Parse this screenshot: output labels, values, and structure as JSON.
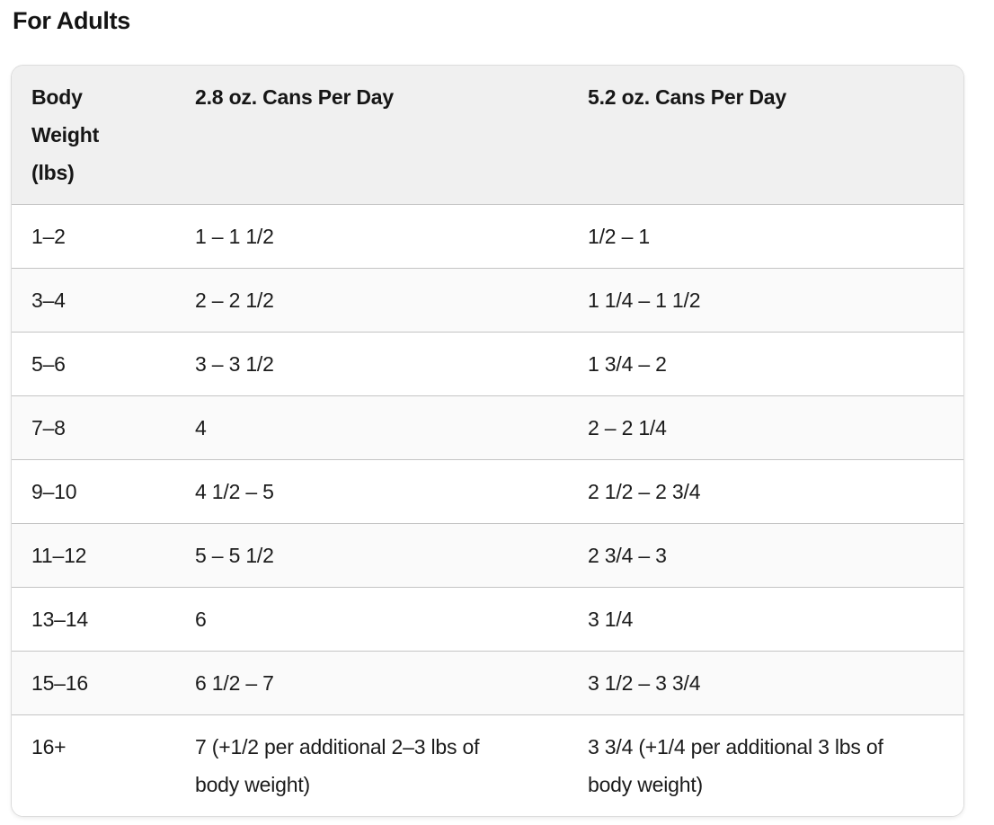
{
  "title": "For Adults",
  "chart_data": {
    "type": "table",
    "title": "For Adults",
    "columns": [
      "Body Weight (lbs)",
      "2.8 oz. Cans Per Day",
      "5.2 oz. Cans Per Day"
    ],
    "rows": [
      [
        "1–2",
        "1 – 1 1/2",
        "1/2 – 1"
      ],
      [
        "3–4",
        "2 – 2 1/2",
        "1 1/4 – 1 1/2"
      ],
      [
        "5–6",
        "3 – 3 1/2",
        "1 3/4 – 2"
      ],
      [
        "7–8",
        "4",
        "2 – 2 1/4"
      ],
      [
        "9–10",
        "4 1/2 – 5",
        "2 1/2 – 2 3/4"
      ],
      [
        "11–12",
        "5 – 5 1/2",
        "2 3/4 – 3"
      ],
      [
        "13–14",
        "6",
        "3 1/4"
      ],
      [
        "15–16",
        "6 1/2 – 7",
        "3 1/2 – 3 3/4"
      ],
      [
        "16+",
        "7 (+1/2 per additional 2–3 lbs of body weight)",
        "3 3/4 (+1/4 per additional 3 lbs of body weight)"
      ]
    ],
    "layout": {
      "striped_rows": true,
      "header_background": "#f0f0f0"
    }
  },
  "colors": {
    "text": "#1b1b1b",
    "header_bg": "#f0f0f0",
    "row_alt_bg": "#fafafa",
    "divider": "#c4c4c4",
    "card_border": "#dcdcdc",
    "page_bg": "#ffffff"
  }
}
